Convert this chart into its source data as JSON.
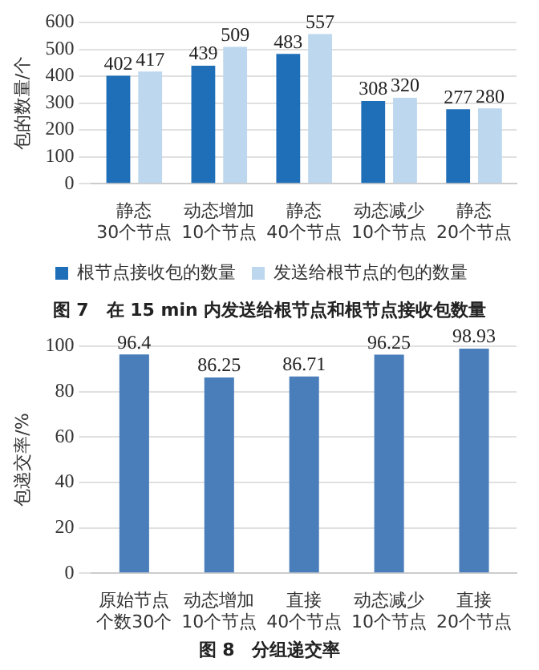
{
  "chart_data": [
    {
      "type": "bar",
      "ylabel": "包的数量/个",
      "categories": [
        "静态30个节点",
        "动态增加10个节点",
        "静态40个节点",
        "动态减少10个节点",
        "静态20个节点"
      ],
      "series": [
        {
          "name": "根节点接收包的数量",
          "color": "#1f6fb8",
          "values": [
            402,
            439,
            483,
            308,
            277
          ]
        },
        {
          "name": "发送给根节点的包的数量",
          "color": "#bdd7ee",
          "values": [
            417,
            509,
            557,
            320,
            280
          ]
        }
      ],
      "ylim": [
        0,
        600
      ],
      "yticks": [
        0,
        100,
        200,
        300,
        400,
        500,
        600
      ],
      "grid": "y",
      "legend": "bottom",
      "data_labels": true,
      "annotations": [
        "图 7　在 15 min 内发送给根节点和根节点接收包数量"
      ]
    },
    {
      "type": "bar",
      "ylabel": "包递交率/%",
      "categories": [
        "原始节点个数30个",
        "动态增加10个节点",
        "直接40个节点",
        "动态减少10个节点",
        "直接20个节点"
      ],
      "values": [
        96.4,
        86.25,
        86.71,
        96.25,
        98.93
      ],
      "color": "#4a7ebb",
      "ylim": [
        0,
        100
      ],
      "yticks": [
        0,
        20,
        40,
        60,
        80,
        100
      ],
      "grid": "y",
      "data_labels": true,
      "annotations": [
        "图 8　分组递交率"
      ]
    }
  ]
}
